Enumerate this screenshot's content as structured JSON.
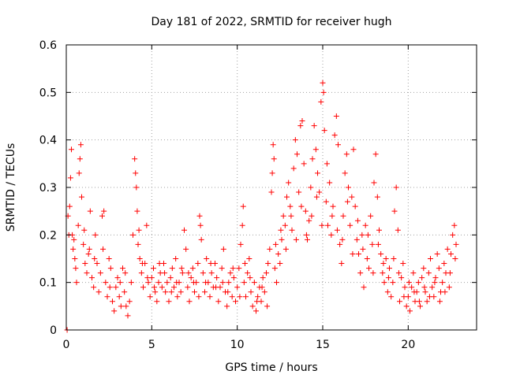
{
  "chart_data": {
    "type": "scatter",
    "title": "Day 181 of 2022, SRMTID for receiver hugh",
    "xlabel": "GPS time / hours",
    "ylabel": "SRMTID / TECUs",
    "xlim": [
      0,
      24
    ],
    "ylim": [
      0,
      0.6
    ],
    "xticks": [
      0,
      5,
      10,
      15,
      20
    ],
    "xtick_labels": [
      "0",
      "5",
      "10",
      "15",
      "20"
    ],
    "yticks": [
      0,
      0.1,
      0.2,
      0.3,
      0.4,
      0.5,
      0.6
    ],
    "ytick_labels": [
      "0",
      "0.1",
      "0.2",
      "0.3",
      "0.4",
      "0.5",
      "0.6"
    ],
    "grid": true,
    "marker": "+",
    "series_color": "#ff0000",
    "series": [
      {
        "name": "SRMTID",
        "points": [
          [
            0.05,
            0.0
          ],
          [
            0.1,
            0.24
          ],
          [
            0.2,
            0.26
          ],
          [
            0.25,
            0.32
          ],
          [
            0.3,
            0.38
          ],
          [
            0.35,
            0.2
          ],
          [
            0.4,
            0.17
          ],
          [
            0.5,
            0.15
          ],
          [
            0.6,
            0.1
          ],
          [
            0.7,
            0.22
          ],
          [
            0.75,
            0.33
          ],
          [
            0.8,
            0.36
          ],
          [
            0.85,
            0.39
          ],
          [
            0.9,
            0.28
          ],
          [
            1.0,
            0.18
          ],
          [
            1.1,
            0.14
          ],
          [
            1.2,
            0.12
          ],
          [
            1.3,
            0.16
          ],
          [
            1.4,
            0.25
          ],
          [
            1.5,
            0.11
          ],
          [
            1.6,
            0.09
          ],
          [
            1.7,
            0.2
          ],
          [
            1.8,
            0.14
          ],
          [
            1.9,
            0.08
          ],
          [
            2.0,
            0.12
          ],
          [
            2.1,
            0.24
          ],
          [
            2.2,
            0.25
          ],
          [
            2.3,
            0.1
          ],
          [
            2.4,
            0.07
          ],
          [
            2.5,
            0.15
          ],
          [
            2.6,
            0.13
          ],
          [
            2.7,
            0.06
          ],
          [
            2.8,
            0.04
          ],
          [
            2.9,
            0.09
          ],
          [
            3.0,
            0.11
          ],
          [
            3.1,
            0.07
          ],
          [
            3.2,
            0.05
          ],
          [
            3.3,
            0.13
          ],
          [
            3.4,
            0.08
          ],
          [
            3.5,
            0.05
          ],
          [
            3.6,
            0.03
          ],
          [
            3.7,
            0.06
          ],
          [
            3.8,
            0.1
          ],
          [
            3.9,
            0.2
          ],
          [
            4.0,
            0.36
          ],
          [
            4.05,
            0.33
          ],
          [
            4.1,
            0.3
          ],
          [
            4.15,
            0.25
          ],
          [
            4.2,
            0.18
          ],
          [
            4.3,
            0.15
          ],
          [
            4.4,
            0.12
          ],
          [
            4.5,
            0.09
          ],
          [
            4.6,
            0.14
          ],
          [
            4.7,
            0.22
          ],
          [
            4.8,
            0.1
          ],
          [
            4.9,
            0.07
          ],
          [
            5.0,
            0.11
          ],
          [
            5.1,
            0.13
          ],
          [
            5.2,
            0.08
          ],
          [
            5.3,
            0.06
          ],
          [
            5.4,
            0.1
          ],
          [
            5.5,
            0.12
          ],
          [
            5.6,
            0.09
          ],
          [
            5.7,
            0.14
          ],
          [
            5.8,
            0.08
          ],
          [
            5.9,
            0.1
          ],
          [
            6.0,
            0.06
          ],
          [
            6.1,
            0.11
          ],
          [
            6.2,
            0.13
          ],
          [
            6.3,
            0.09
          ],
          [
            6.4,
            0.15
          ],
          [
            6.5,
            0.07
          ],
          [
            6.6,
            0.1
          ],
          [
            6.7,
            0.08
          ],
          [
            6.8,
            0.12
          ],
          [
            6.9,
            0.21
          ],
          [
            7.0,
            0.17
          ],
          [
            7.1,
            0.09
          ],
          [
            7.2,
            0.06
          ],
          [
            7.3,
            0.11
          ],
          [
            7.4,
            0.13
          ],
          [
            7.5,
            0.08
          ],
          [
            7.6,
            0.1
          ],
          [
            7.7,
            0.14
          ],
          [
            7.8,
            0.24
          ],
          [
            7.85,
            0.22
          ],
          [
            7.9,
            0.19
          ],
          [
            8.0,
            0.12
          ],
          [
            8.1,
            0.08
          ],
          [
            8.2,
            0.15
          ],
          [
            8.3,
            0.1
          ],
          [
            8.4,
            0.07
          ],
          [
            8.5,
            0.12
          ],
          [
            8.6,
            0.09
          ],
          [
            8.7,
            0.14
          ],
          [
            8.8,
            0.11
          ],
          [
            8.9,
            0.06
          ],
          [
            9.0,
            0.09
          ],
          [
            9.1,
            0.13
          ],
          [
            9.2,
            0.17
          ],
          [
            9.3,
            0.08
          ],
          [
            9.4,
            0.05
          ],
          [
            9.5,
            0.1
          ],
          [
            9.6,
            0.12
          ],
          [
            9.7,
            0.07
          ],
          [
            9.8,
            0.11
          ],
          [
            9.9,
            0.06
          ],
          [
            10.0,
            0.09
          ],
          [
            10.1,
            0.13
          ],
          [
            10.2,
            0.18
          ],
          [
            10.3,
            0.22
          ],
          [
            10.35,
            0.26
          ],
          [
            10.4,
            0.1
          ],
          [
            10.5,
            0.07
          ],
          [
            10.6,
            0.12
          ],
          [
            10.7,
            0.15
          ],
          [
            10.8,
            0.08
          ],
          [
            10.9,
            0.05
          ],
          [
            11.0,
            0.1
          ],
          [
            11.1,
            0.04
          ],
          [
            11.2,
            0.07
          ],
          [
            11.3,
            0.09
          ],
          [
            11.4,
            0.06
          ],
          [
            11.5,
            0.11
          ],
          [
            11.6,
            0.08
          ],
          [
            11.7,
            0.12
          ],
          [
            11.8,
            0.14
          ],
          [
            11.9,
            0.17
          ],
          [
            12.0,
            0.29
          ],
          [
            12.05,
            0.33
          ],
          [
            12.1,
            0.39
          ],
          [
            12.15,
            0.36
          ],
          [
            12.2,
            0.13
          ],
          [
            12.3,
            0.1
          ],
          [
            12.4,
            0.16
          ],
          [
            12.5,
            0.14
          ],
          [
            12.6,
            0.19
          ],
          [
            12.7,
            0.24
          ],
          [
            12.8,
            0.22
          ],
          [
            12.9,
            0.28
          ],
          [
            13.0,
            0.31
          ],
          [
            13.1,
            0.26
          ],
          [
            13.2,
            0.21
          ],
          [
            13.3,
            0.34
          ],
          [
            13.4,
            0.4
          ],
          [
            13.5,
            0.37
          ],
          [
            13.6,
            0.29
          ],
          [
            13.7,
            0.43
          ],
          [
            13.8,
            0.44
          ],
          [
            13.9,
            0.35
          ],
          [
            14.0,
            0.25
          ],
          [
            14.1,
            0.19
          ],
          [
            14.2,
            0.23
          ],
          [
            14.3,
            0.3
          ],
          [
            14.4,
            0.36
          ],
          [
            14.5,
            0.43
          ],
          [
            14.6,
            0.38
          ],
          [
            14.7,
            0.33
          ],
          [
            14.8,
            0.29
          ],
          [
            14.9,
            0.48
          ],
          [
            15.0,
            0.52
          ],
          [
            15.05,
            0.5
          ],
          [
            15.1,
            0.42
          ],
          [
            15.2,
            0.27
          ],
          [
            15.3,
            0.22
          ],
          [
            15.4,
            0.31
          ],
          [
            15.5,
            0.2
          ],
          [
            15.6,
            0.26
          ],
          [
            15.7,
            0.41
          ],
          [
            15.8,
            0.45
          ],
          [
            15.9,
            0.39
          ],
          [
            16.0,
            0.18
          ],
          [
            16.1,
            0.14
          ],
          [
            16.2,
            0.24
          ],
          [
            16.3,
            0.33
          ],
          [
            16.4,
            0.37
          ],
          [
            16.5,
            0.3
          ],
          [
            16.6,
            0.22
          ],
          [
            16.7,
            0.28
          ],
          [
            16.8,
            0.38
          ],
          [
            16.9,
            0.26
          ],
          [
            17.0,
            0.19
          ],
          [
            17.1,
            0.16
          ],
          [
            17.2,
            0.12
          ],
          [
            17.3,
            0.2
          ],
          [
            17.4,
            0.09
          ],
          [
            17.5,
            0.22
          ],
          [
            17.6,
            0.15
          ],
          [
            17.7,
            0.13
          ],
          [
            17.8,
            0.24
          ],
          [
            17.9,
            0.18
          ],
          [
            18.0,
            0.31
          ],
          [
            18.1,
            0.37
          ],
          [
            18.2,
            0.28
          ],
          [
            18.3,
            0.21
          ],
          [
            18.4,
            0.16
          ],
          [
            18.5,
            0.12
          ],
          [
            18.6,
            0.1
          ],
          [
            18.7,
            0.15
          ],
          [
            18.8,
            0.08
          ],
          [
            18.9,
            0.13
          ],
          [
            19.0,
            0.07
          ],
          [
            19.1,
            0.1
          ],
          [
            19.2,
            0.25
          ],
          [
            19.3,
            0.3
          ],
          [
            19.4,
            0.21
          ],
          [
            19.5,
            0.06
          ],
          [
            19.6,
            0.11
          ],
          [
            19.7,
            0.14
          ],
          [
            19.8,
            0.09
          ],
          [
            19.9,
            0.05
          ],
          [
            20.0,
            0.07
          ],
          [
            20.1,
            0.04
          ],
          [
            20.2,
            0.09
          ],
          [
            20.3,
            0.12
          ],
          [
            20.4,
            0.06
          ],
          [
            20.5,
            0.08
          ],
          [
            20.6,
            0.1
          ],
          [
            20.7,
            0.05
          ],
          [
            20.8,
            0.11
          ],
          [
            20.9,
            0.13
          ],
          [
            21.0,
            0.08
          ],
          [
            21.1,
            0.06
          ],
          [
            21.2,
            0.12
          ],
          [
            21.3,
            0.15
          ],
          [
            21.4,
            0.09
          ],
          [
            21.5,
            0.07
          ],
          [
            21.6,
            0.11
          ],
          [
            21.7,
            0.16
          ],
          [
            21.8,
            0.13
          ],
          [
            21.9,
            0.08
          ],
          [
            22.0,
            0.1
          ],
          [
            22.1,
            0.14
          ],
          [
            22.2,
            0.12
          ],
          [
            22.3,
            0.17
          ],
          [
            22.4,
            0.09
          ],
          [
            22.5,
            0.16
          ],
          [
            22.6,
            0.2
          ],
          [
            22.7,
            0.22
          ],
          [
            22.8,
            0.18
          ],
          [
            0.15,
            0.2
          ],
          [
            0.45,
            0.19
          ],
          [
            0.55,
            0.13
          ],
          [
            1.05,
            0.21
          ],
          [
            1.35,
            0.17
          ],
          [
            1.65,
            0.15
          ],
          [
            2.15,
            0.17
          ],
          [
            2.55,
            0.09
          ],
          [
            3.15,
            0.1
          ],
          [
            3.45,
            0.12
          ],
          [
            4.25,
            0.21
          ],
          [
            4.45,
            0.14
          ],
          [
            4.75,
            0.11
          ],
          [
            5.15,
            0.09
          ],
          [
            5.45,
            0.14
          ],
          [
            5.75,
            0.12
          ],
          [
            6.15,
            0.08
          ],
          [
            6.45,
            0.1
          ],
          [
            6.75,
            0.13
          ],
          [
            7.15,
            0.12
          ],
          [
            7.45,
            0.1
          ],
          [
            7.75,
            0.07
          ],
          [
            8.15,
            0.1
          ],
          [
            8.45,
            0.14
          ],
          [
            8.75,
            0.09
          ],
          [
            9.15,
            0.1
          ],
          [
            9.45,
            0.08
          ],
          [
            9.75,
            0.13
          ],
          [
            10.15,
            0.07
          ],
          [
            10.45,
            0.14
          ],
          [
            10.75,
            0.11
          ],
          [
            11.15,
            0.06
          ],
          [
            11.45,
            0.09
          ],
          [
            11.75,
            0.05
          ],
          [
            12.25,
            0.18
          ],
          [
            12.55,
            0.21
          ],
          [
            12.85,
            0.17
          ],
          [
            13.15,
            0.24
          ],
          [
            13.45,
            0.19
          ],
          [
            13.75,
            0.26
          ],
          [
            14.05,
            0.2
          ],
          [
            14.35,
            0.24
          ],
          [
            14.65,
            0.28
          ],
          [
            14.95,
            0.22
          ],
          [
            15.25,
            0.35
          ],
          [
            15.55,
            0.24
          ],
          [
            15.85,
            0.21
          ],
          [
            16.15,
            0.19
          ],
          [
            16.45,
            0.27
          ],
          [
            16.75,
            0.16
          ],
          [
            17.05,
            0.23
          ],
          [
            17.35,
            0.17
          ],
          [
            17.65,
            0.2
          ],
          [
            17.95,
            0.12
          ],
          [
            18.25,
            0.18
          ],
          [
            18.55,
            0.14
          ],
          [
            18.85,
            0.11
          ],
          [
            19.15,
            0.15
          ],
          [
            19.45,
            0.12
          ],
          [
            19.75,
            0.07
          ],
          [
            20.05,
            0.1
          ],
          [
            20.35,
            0.08
          ],
          [
            20.65,
            0.06
          ],
          [
            20.95,
            0.09
          ],
          [
            21.25,
            0.07
          ],
          [
            21.55,
            0.1
          ],
          [
            21.85,
            0.06
          ],
          [
            22.15,
            0.08
          ],
          [
            22.45,
            0.12
          ],
          [
            22.75,
            0.15
          ]
        ]
      }
    ]
  }
}
